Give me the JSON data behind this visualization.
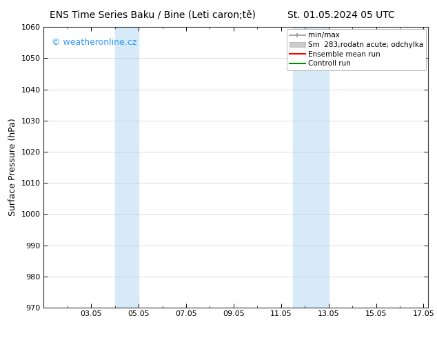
{
  "title_left": "ENS Time Series Baku / Bine (Leti caron;tě)",
  "title_right": "St. 01.05.2024 05 UTC",
  "ylabel": "Surface Pressure (hPa)",
  "ylim": [
    970,
    1060
  ],
  "yticks": [
    970,
    980,
    990,
    1000,
    1010,
    1020,
    1030,
    1040,
    1050,
    1060
  ],
  "xlim": [
    1.0,
    17.2
  ],
  "xtick_labels": [
    "03.05",
    "05.05",
    "07.05",
    "09.05",
    "11.05",
    "13.05",
    "15.05",
    "17.05"
  ],
  "xtick_positions": [
    3,
    5,
    7,
    9,
    11,
    13,
    15,
    17
  ],
  "shade_regions": [
    {
      "x_start": 4.0,
      "x_end": 5.0
    },
    {
      "x_start": 11.5,
      "x_end": 13.0
    }
  ],
  "shade_color": "#d6eaf8",
  "background_color": "#ffffff",
  "watermark_text": "© weatheronline.cz",
  "watermark_color": "#3399ff",
  "legend_label1": "min/max",
  "legend_label2": "Sm  283;rodatn acute; odchylka",
  "legend_label3": "Ensemble mean run",
  "legend_label4": "Controll run",
  "legend_color1": "#999999",
  "legend_color2": "#cccccc",
  "legend_color3": "#ff0000",
  "legend_color4": "#008800",
  "grid_color": "#cccccc",
  "grid_lw": 0.5,
  "title_fontsize": 10,
  "tick_fontsize": 8,
  "ylabel_fontsize": 9,
  "watermark_fontsize": 9,
  "legend_fontsize": 7.5
}
